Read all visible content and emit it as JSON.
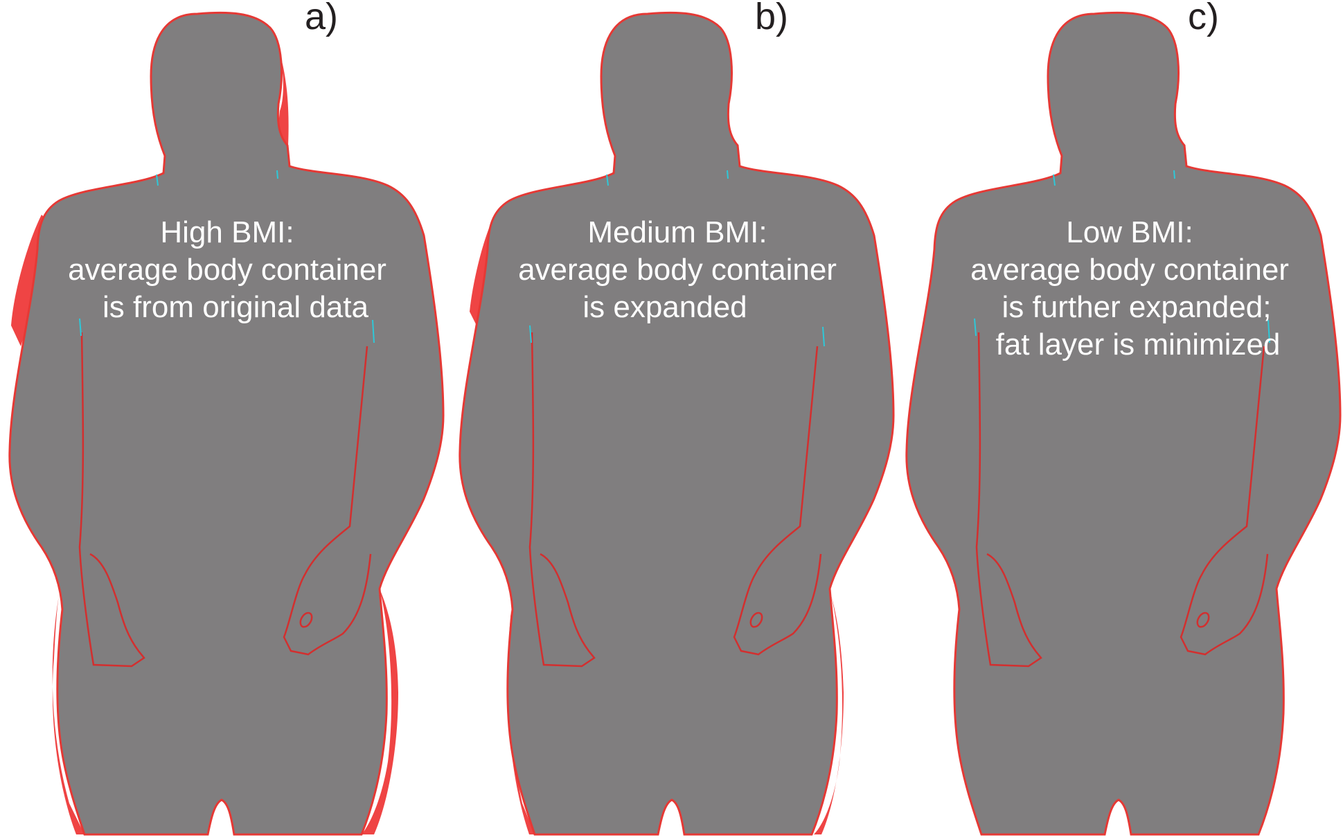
{
  "colors": {
    "background": "#ffffff",
    "body_fill": "#807e7f",
    "fat_layer": "#ef4444",
    "outline": "#e53935",
    "cyan_marks": "#2ec8d8",
    "caption_text": "#ffffff",
    "label_text": "#231f20"
  },
  "panels": [
    {
      "letter": "a)",
      "caption_lines": [
        "High BMI:",
        "average body container",
        "is from original data"
      ],
      "fat_layer": "large"
    },
    {
      "letter": "b)",
      "caption_lines": [
        "Medium BMI:",
        "average body container",
        "is expanded"
      ],
      "fat_layer": "medium"
    },
    {
      "letter": "c)",
      "caption_lines": [
        "Low BMI:",
        "average body container",
        "is further expanded;",
        "fat layer is minimized"
      ],
      "fat_layer": "minimal"
    }
  ]
}
